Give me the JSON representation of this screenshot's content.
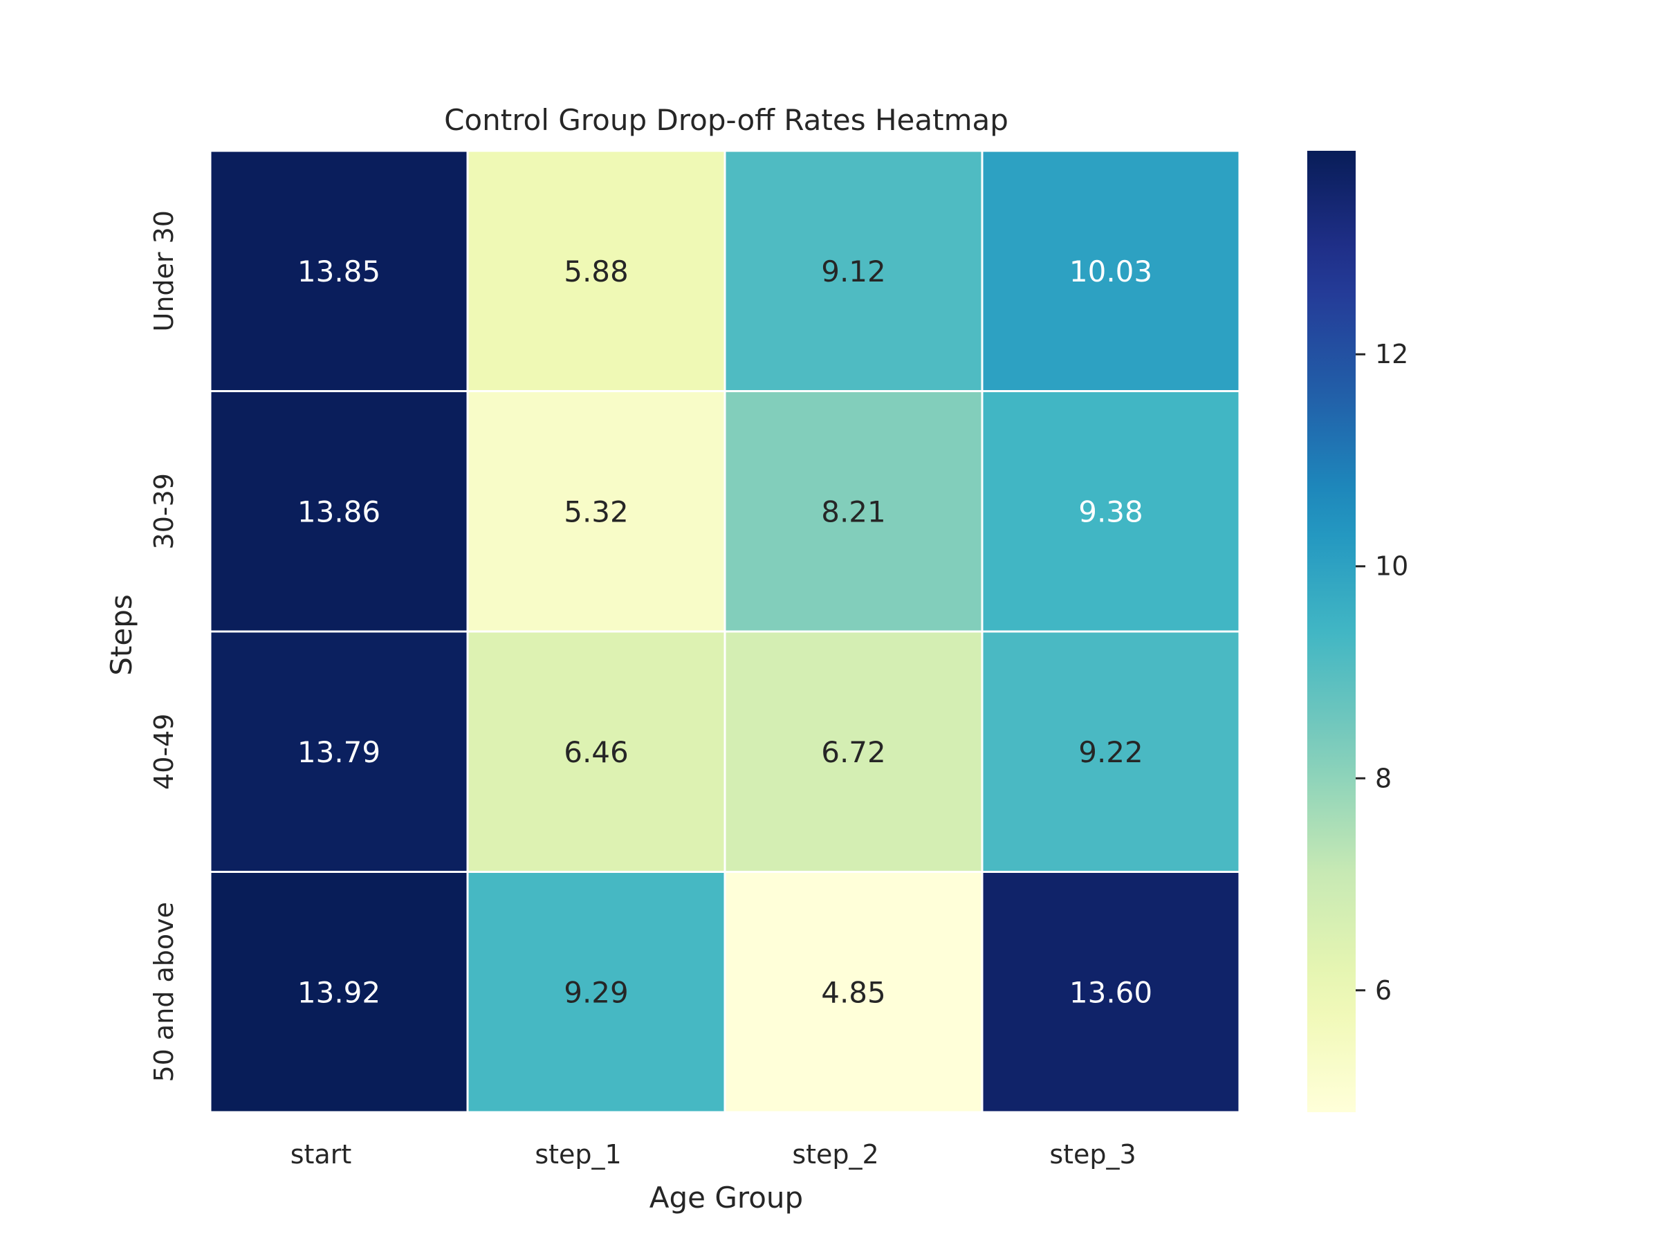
{
  "chart_data": {
    "type": "heatmap",
    "title": "Control Group Drop-off Rates Heatmap",
    "xlabel": "Age Group",
    "ylabel": "Steps",
    "x_categories": [
      "start",
      "step_1",
      "step_2",
      "step_3"
    ],
    "y_categories": [
      "Under 30",
      "30-39",
      "40-49",
      "50 and above"
    ],
    "values": [
      [
        13.85,
        5.88,
        9.12,
        10.03
      ],
      [
        13.86,
        5.32,
        8.21,
        9.38
      ],
      [
        13.79,
        6.46,
        6.72,
        9.22
      ],
      [
        13.92,
        9.29,
        4.85,
        13.6
      ]
    ],
    "cell_labels": [
      [
        "13.85",
        "5.88",
        "9.12",
        "10.03"
      ],
      [
        "13.86",
        "5.32",
        "8.21",
        "9.38"
      ],
      [
        "13.79",
        "6.46",
        "6.72",
        "9.22"
      ],
      [
        "13.92",
        "9.29",
        "4.85",
        "13.60"
      ]
    ],
    "colormap": "YlGnBu",
    "vmin": 4.85,
    "vmax": 13.92,
    "colorbar_ticks": [
      "6",
      "8",
      "10",
      "12"
    ],
    "cell_border_color": "#ffffff"
  }
}
